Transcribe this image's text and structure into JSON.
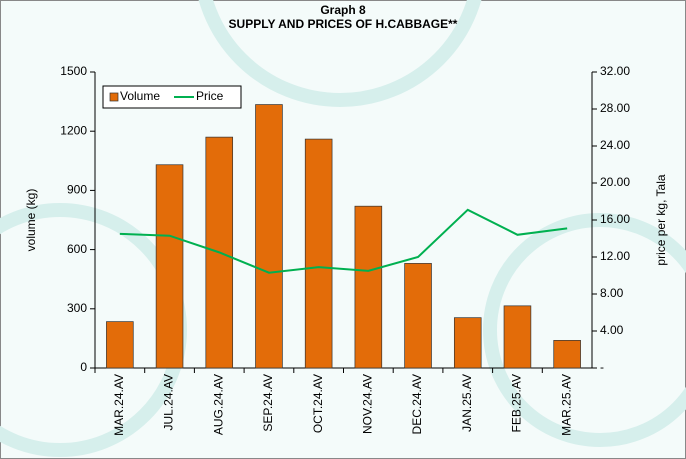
{
  "chart_data": {
    "type": "bar_line",
    "title": "Graph 8",
    "subtitle": "SUPPLY AND PRICES OF H.CABBAGE**",
    "y_label": "volume (kg)",
    "y2_label": "price per kg, Tala",
    "categories": [
      "MAR.24.AV",
      "JUL.24.AV",
      "AUG.24.AV",
      "SEP.24.AV",
      "OCT.24.AV",
      "NOV.24.AV",
      "DEC.24.AV",
      "JAN.25.AV",
      "FEB.25.AV",
      "MAR.25.AV"
    ],
    "series": [
      {
        "name": "Volume",
        "type": "bar",
        "color": "#e36c09",
        "values": [
          235,
          1030,
          1170,
          1335,
          1160,
          820,
          530,
          255,
          315,
          140
        ]
      },
      {
        "name": "Price",
        "type": "line",
        "axis": "y2",
        "color": "#00b050",
        "values": [
          14.5,
          14.3,
          12.5,
          10.3,
          10.9,
          10.5,
          12.0,
          17.1,
          14.4,
          15.1
        ]
      }
    ],
    "ylim": [
      0,
      1500
    ],
    "yticks": [
      0,
      300,
      600,
      900,
      1200,
      1500
    ],
    "y2lim": [
      0,
      32
    ],
    "y2ticks": [
      {
        "value": 0,
        "label": "-"
      },
      {
        "value": 4,
        "label": "4.00"
      },
      {
        "value": 8,
        "label": "8.00"
      },
      {
        "value": 12,
        "label": "12.00"
      },
      {
        "value": 16,
        "label": "16.00"
      },
      {
        "value": 20,
        "label": "20.00"
      },
      {
        "value": 24,
        "label": "24.00"
      },
      {
        "value": 28,
        "label": "28.00"
      },
      {
        "value": 32,
        "label": "32.00"
      }
    ],
    "legend": "top-left",
    "grid": false
  }
}
